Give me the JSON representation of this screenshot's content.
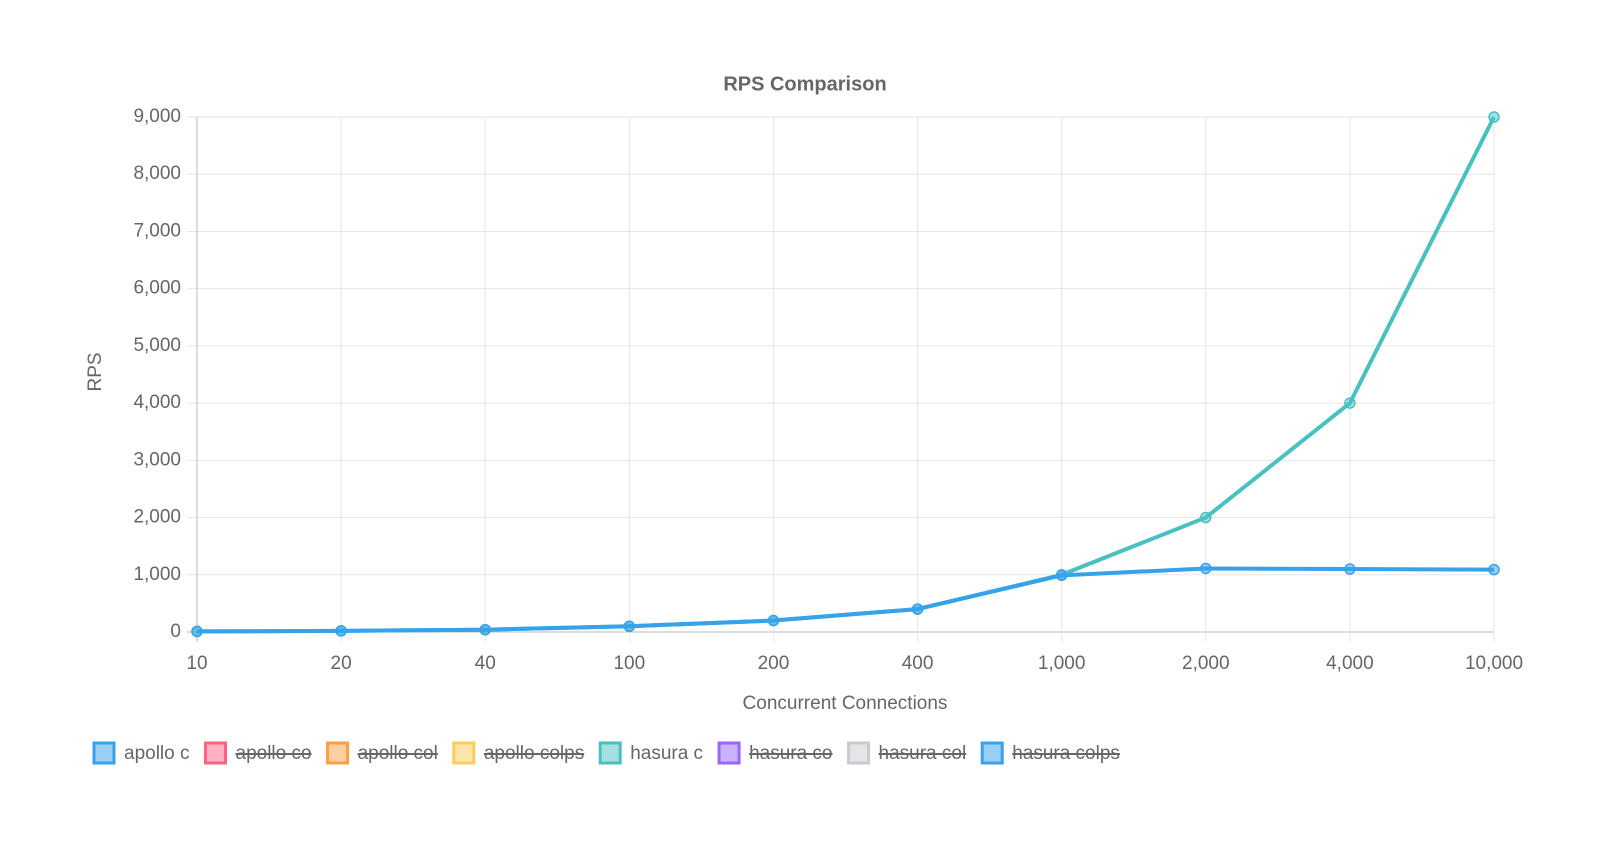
{
  "chart_data": {
    "type": "line",
    "title": "RPS Comparison",
    "x_label": "Concurrent Connections",
    "y_label": "RPS",
    "categories": [
      "10",
      "20",
      "40",
      "100",
      "200",
      "400",
      "1,000",
      "2,000",
      "4,000",
      "10,000"
    ],
    "series": [
      {
        "name": "apollo c",
        "color": "#36a2eb",
        "values": [
          10,
          20,
          40,
          100,
          200,
          400,
          990,
          1110,
          1100,
          1090
        ]
      },
      {
        "name": "apollo co",
        "color": "#ff6384",
        "hidden": true
      },
      {
        "name": "apollo col",
        "color": "#ff9f40",
        "hidden": true
      },
      {
        "name": "apollo colps",
        "color": "#ffcd56",
        "hidden": true
      },
      {
        "name": "hasura c",
        "color": "#4bc0c0",
        "values": [
          10,
          20,
          40,
          100,
          200,
          400,
          1000,
          2000,
          4000,
          9000
        ]
      },
      {
        "name": "hasura co",
        "color": "#9966ff",
        "hidden": true
      },
      {
        "name": "hasura col",
        "color": "#c9cbcf",
        "hidden": true
      },
      {
        "name": "hasura colps",
        "color": "#36a2eb",
        "hidden": true
      }
    ],
    "ylim": [
      0,
      9000
    ],
    "yticks": [
      0,
      {
        "value": 1000,
        "label": "1,000"
      },
      {
        "value": 2000,
        "label": "2,000"
      },
      {
        "value": 3000,
        "label": "3,000"
      },
      {
        "value": 4000,
        "label": "4,000"
      },
      {
        "value": 5000,
        "label": "5,000"
      },
      {
        "value": 6000,
        "label": "6,000"
      },
      {
        "value": 7000,
        "label": "7,000"
      },
      {
        "value": 8000,
        "label": "8,000"
      },
      {
        "value": 9000,
        "label": "9,000"
      }
    ],
    "grid": true,
    "legend": "bottom-left"
  }
}
